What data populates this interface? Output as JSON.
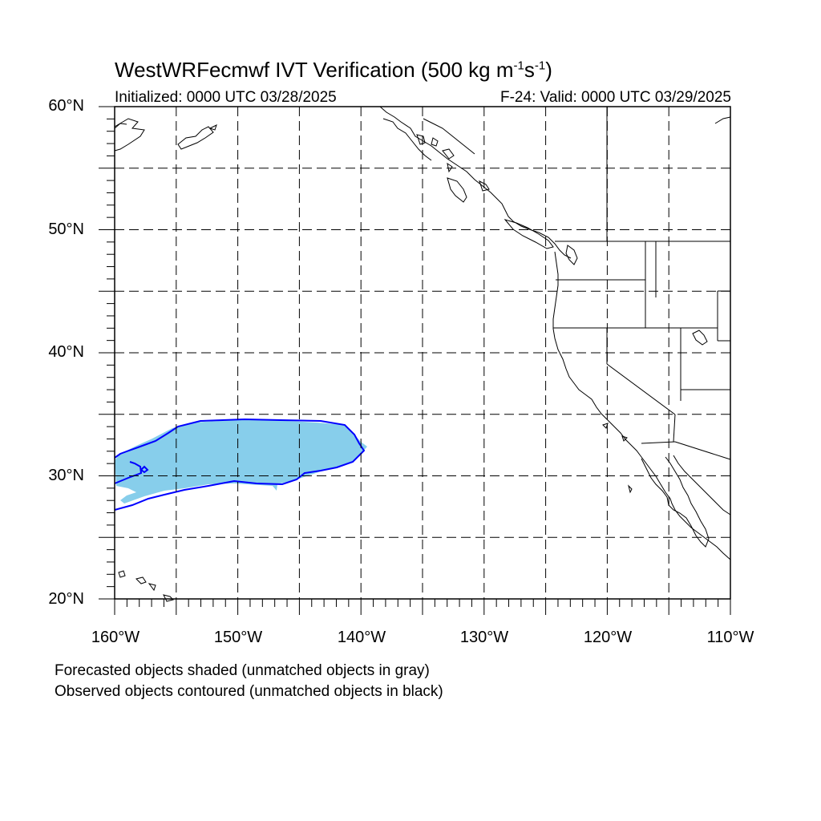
{
  "title": {
    "prefix": "WestWRFecmwf IVT Verification (500 kg m",
    "sup1": "-1",
    "mid": "s",
    "sup2": "-1",
    "suffix": ")"
  },
  "initialized": "Initialized: 0000 UTC 03/28/2025",
  "valid": "F-24: Valid: 0000 UTC 03/29/2025",
  "lat_labels": [
    "60°N",
    "50°N",
    "40°N",
    "30°N",
    "20°N"
  ],
  "lon_labels": [
    "160°W",
    "150°W",
    "140°W",
    "130°W",
    "120°W",
    "110°W"
  ],
  "footnotes": [
    "Forecasted objects shaded (unmatched objects in gray)",
    "Observed objects contoured (unmatched objects in black)"
  ],
  "colors": {
    "forecast_fill": "#87ceeb",
    "observed_contour": "#0000ff",
    "coastline": "#000000",
    "grid": "#000000"
  }
}
